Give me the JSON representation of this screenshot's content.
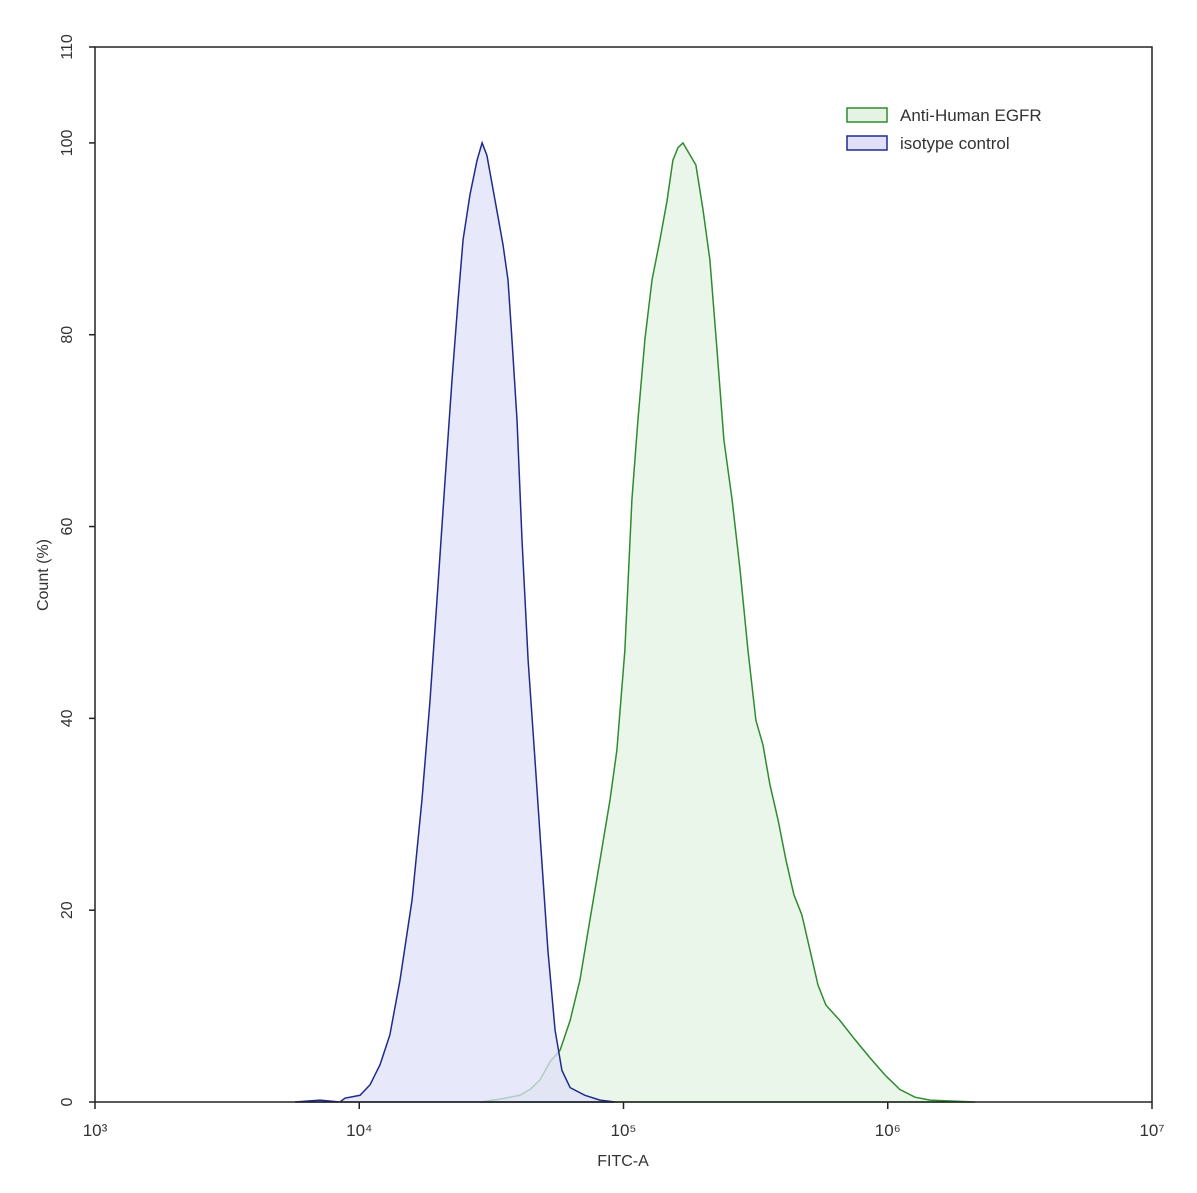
{
  "chart_data": {
    "type": "area",
    "x_label": "FITC-A",
    "y_label": "Count (%)",
    "xscale": "log",
    "xlim": [
      1000,
      10000000
    ],
    "xticks": [
      {
        "value": 1000,
        "label": "10³"
      },
      {
        "value": 10000,
        "label": "10⁴"
      },
      {
        "value": 100000,
        "label": "10⁵"
      },
      {
        "value": 1000000,
        "label": "10⁶"
      },
      {
        "value": 10000000,
        "label": "10⁷"
      }
    ],
    "ylim": [
      0,
      110
    ],
    "yticks": [
      0,
      20,
      40,
      60,
      80,
      100,
      110
    ],
    "legend": "upper right",
    "series": [
      {
        "name": "Anti-Human EGFR",
        "color": "#2e8b2e",
        "fill": "#e4f3e4",
        "x": [
          28650,
          34120,
          40550,
          44260,
          48310,
          52720,
          57540,
          62800,
          68390,
          74650,
          81470,
          88920,
          94410,
          101200,
          107600,
          113400,
          120500,
          128200,
          137400,
          146200,
          153800,
          160700,
          167900,
          175400,
          187900,
          200000,
          212300,
          225900,
          239900,
          257600,
          276100,
          295800,
          317000,
          337300,
          358100,
          384600,
          412100,
          441600,
          473200,
          508100,
          544500,
          583400,
          659200,
          751600,
          857000,
          977200,
          1112000,
          1268000,
          1445000,
          1722000,
          2138000
        ],
        "values": [
          0,
          0.3,
          0.7,
          1.3,
          2.3,
          4.2,
          5.4,
          8.5,
          12.7,
          19.0,
          25.2,
          31.5,
          36.7,
          47.1,
          62.8,
          71.1,
          79.5,
          85.7,
          89.9,
          94.0,
          98.2,
          99.5,
          100,
          99.1,
          97.7,
          93.0,
          87.8,
          78.4,
          69.0,
          62.8,
          55.5,
          47.1,
          39.8,
          37.2,
          33.1,
          29.4,
          25.2,
          21.6,
          19.5,
          15.8,
          12.2,
          10.1,
          8.5,
          6.5,
          4.6,
          2.8,
          1.3,
          0.5,
          0.2,
          0.1,
          0
        ]
      },
      {
        "name": "isotype control",
        "color": "#1f2a8c",
        "fill": "#dfe0f7",
        "x": [
          5710,
          7100,
          8450,
          8830,
          10070,
          10990,
          11990,
          13060,
          14260,
          15850,
          17270,
          18530,
          19680,
          21130,
          22440,
          23660,
          24710,
          26240,
          27920,
          29170,
          30410,
          32660,
          34990,
          36560,
          37840,
          39540,
          41300,
          43550,
          46240,
          48750,
          51760,
          55080,
          58480,
          62800,
          71450,
          81470,
          92900
        ],
        "values": [
          0,
          0.2,
          0,
          0.4,
          0.7,
          1.8,
          3.9,
          7.0,
          12.7,
          21.1,
          31.5,
          41.9,
          52.3,
          64.9,
          75.3,
          83.6,
          89.9,
          94.6,
          98.2,
          100,
          98.7,
          94.0,
          89.4,
          85.7,
          79.5,
          71.1,
          58.6,
          46.1,
          35.7,
          26.3,
          15.8,
          7.5,
          3.3,
          1.5,
          0.7,
          0.2,
          0
        ]
      }
    ]
  }
}
